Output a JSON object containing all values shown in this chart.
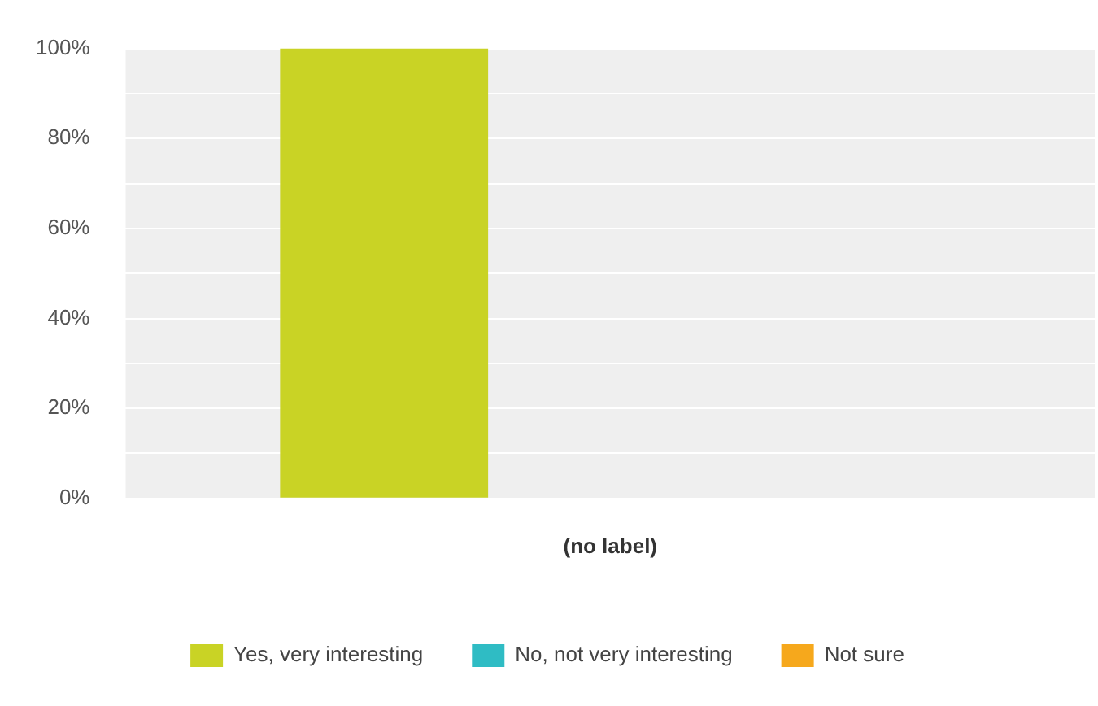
{
  "chart_data": {
    "type": "bar",
    "categories": [
      "(no label)"
    ],
    "series": [
      {
        "name": "Yes, very interesting",
        "color": "#c9d325",
        "values": [
          100
        ]
      },
      {
        "name": "No, not very interesting",
        "color": "#2fbcc4",
        "values": [
          0
        ]
      },
      {
        "name": "Not sure",
        "color": "#f6a81c",
        "values": [
          0
        ]
      }
    ],
    "ylim": [
      0,
      100
    ],
    "yticks": [
      {
        "value": 0,
        "label": "0%"
      },
      {
        "value": 10,
        "label": null
      },
      {
        "value": 20,
        "label": "20%"
      },
      {
        "value": 30,
        "label": null
      },
      {
        "value": 40,
        "label": "40%"
      },
      {
        "value": 50,
        "label": null
      },
      {
        "value": 60,
        "label": "60%"
      },
      {
        "value": 70,
        "label": null
      },
      {
        "value": 80,
        "label": "80%"
      },
      {
        "value": 90,
        "label": null
      },
      {
        "value": 100,
        "label": "100%"
      }
    ],
    "grid": "y",
    "legend": "bottom"
  }
}
